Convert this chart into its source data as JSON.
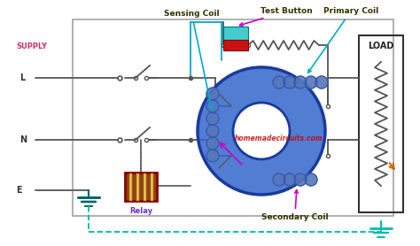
{
  "bg_color": "#ffffff",
  "supply_label": "SUPPLY",
  "L_label": "L",
  "N_label": "N",
  "E_label": "E",
  "load_label": "LOAD",
  "sensing_coil_label": "Sensing Coil",
  "test_button_label": "Test Button",
  "primary_coil_label": "Primary Coil",
  "secondary_coil_label": "Secondary Coil",
  "relay_label": "Relay",
  "watermark": "homemadecircuits.com",
  "supply_color": "#cc3366",
  "wire_color": "#888888",
  "torus_outer_color": "#1a3a9c",
  "torus_fill": "#3366cc",
  "label_color": "#333300",
  "arrow_color": "#00aacc",
  "magenta_arrow": "#cc00cc",
  "ground_color": "#00bbaa",
  "load_box_color": "#444444",
  "relay_border": "#880000",
  "relay_fill": "#cc3300",
  "test_btn_cyan": "#44cccc",
  "test_btn_red": "#cc1111",
  "sensing_line_color": "#00aacc",
  "zigzag_color": "#555555",
  "coil_color": "#5577bb",
  "dark_wire": "#555555"
}
